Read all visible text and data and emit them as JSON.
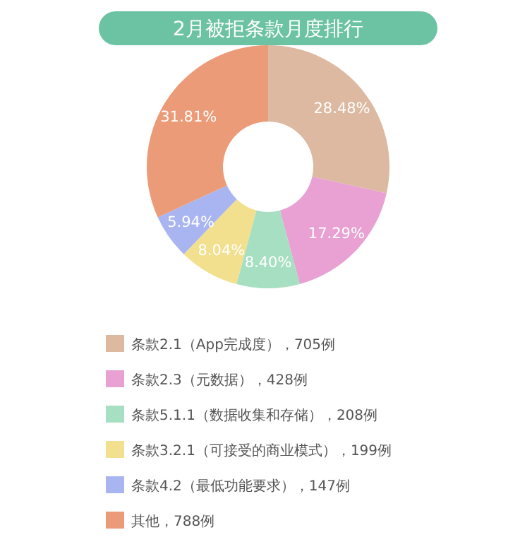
{
  "chart_data": {
    "type": "donut",
    "title": "2月被拒条款月度排行",
    "categories": [
      "条款2.1（App完成度），705例",
      "条款2.3（元数据），428例",
      "条款5.1.1（数据收集和存储），208例",
      "条款3.2.1（可接受的商业模式），199例",
      "条款4.2（最低功能要求），147例",
      "其他，788例"
    ],
    "values": [
      28.48,
      17.29,
      8.4,
      8.04,
      5.94,
      31.81
    ],
    "value_labels": [
      "28.48%",
      "17.29%",
      "8.40%",
      "8.04%",
      "5.94%",
      "31.81%"
    ],
    "colors": [
      "#dcb9a0",
      "#e8a1d2",
      "#a6dfc1",
      "#f2e08e",
      "#a9b5f1",
      "#ec9b78"
    ],
    "legend": "bottom"
  }
}
